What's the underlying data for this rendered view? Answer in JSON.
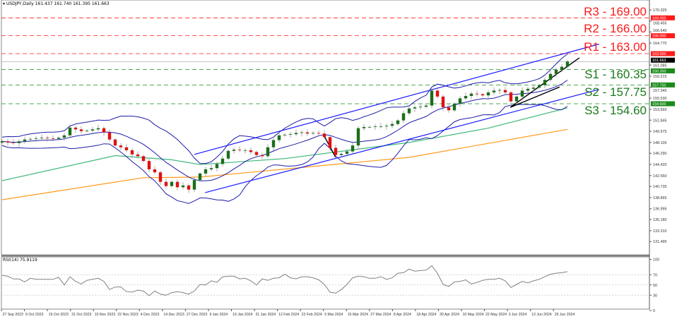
{
  "header": {
    "symbol": "USDJPY,Daily",
    "ohlc": "161.437 161.740 161.395 161.663"
  },
  "rsi_label": "RSI(14) 75.9119",
  "levels": {
    "r3": {
      "label": "R3 - 169.00",
      "value": 169.0
    },
    "r2": {
      "label": "R2 - 166.00",
      "value": 166.0
    },
    "r1": {
      "label": "R1 - 163.00",
      "value": 163.0
    },
    "s1": {
      "label": "S1 - 160.35",
      "value": 160.35
    },
    "s2": {
      "label": "S2 - 157.75",
      "value": 157.75
    },
    "s3": {
      "label": "S3 - 154.60",
      "value": 154.6
    }
  },
  "colors": {
    "resistance": "#ff1a1a",
    "support": "#1a8a1a",
    "up_candle": "#1a6e1a",
    "down_candle": "#e01010",
    "bollinger": "#1c1ca8",
    "channel": "#1a1aff",
    "ma_green": "#3cb878",
    "ma_orange": "#ff9a1a",
    "rsi": "#808080",
    "current_price": "#000000"
  },
  "chart_data": [
    {
      "type": "candlestick",
      "title": "USDJPY,Daily",
      "current_price": 161.663,
      "ylim": [
        131.0,
        171.0
      ],
      "y_tick_labels": [
        "170.325",
        "168.455",
        "166.640",
        "164.770",
        "161.085",
        "159.215",
        "157.345",
        "155.530",
        "153.660",
        "151.845",
        "149.975",
        "148.105",
        "146.290",
        "144.420",
        "142.550",
        "140.735",
        "138.865",
        "136.995",
        "135.180",
        "133.310",
        "131.495"
      ],
      "level_tags": [
        {
          "text": "169.000",
          "value": 169.0,
          "kind": "resistance"
        },
        {
          "text": "166.000",
          "value": 166.0,
          "kind": "resistance"
        },
        {
          "text": "163.000",
          "value": 163.0,
          "kind": "resistance"
        },
        {
          "text": "161.663",
          "value": 161.663,
          "kind": "current"
        },
        {
          "text": "160.350",
          "value": 160.35,
          "kind": "support"
        },
        {
          "text": "157.750",
          "value": 157.75,
          "kind": "support"
        },
        {
          "text": "154.600",
          "value": 154.6,
          "kind": "support"
        }
      ],
      "x_tick_labels": [
        "27 Sep 2023",
        "9 Oct 2023",
        "19 Oct 2023",
        "31 Oct 2023",
        "10 Nov 2023",
        "22 Nov 2023",
        "4 Dec 2023",
        "14 Dec 2023",
        "27 Dec 2023",
        "9 Jan 2024",
        "19 Jan 2024",
        "31 Jan 2024",
        "12 Feb 2024",
        "22 Feb 2024",
        "5 Mar 2024",
        "15 Mar 2024",
        "27 Mar 2024",
        "8 Apr 2024",
        "18 Apr 2024",
        "30 Apr 2024",
        "10 May 2024",
        "22 May 2024",
        "3 Jun 2024",
        "13 Jun 2024",
        "25 Jun 2024"
      ],
      "closes": [
        148.3,
        148.1,
        148.0,
        148.3,
        148.6,
        148.7,
        148.8,
        148.9,
        148.8,
        148.7,
        148.9,
        149.3,
        150.6,
        150.3,
        150.0,
        150.1,
        150.3,
        150.5,
        149.8,
        148.6,
        147.6,
        147.3,
        146.8,
        146.1,
        145.8,
        145.0,
        143.6,
        143.1,
        141.5,
        140.8,
        141.5,
        140.6,
        140.9,
        140.2,
        141.8,
        142.9,
        143.6,
        143.8,
        144.5,
        145.4,
        146.7,
        146.9,
        146.8,
        146.8,
        146.5,
        146.0,
        145.8,
        147.3,
        148.5,
        149.3,
        149.4,
        149.5,
        149.7,
        149.8,
        149.6,
        149.7,
        149.6,
        149.0,
        147.2,
        146.0,
        146.2,
        146.6,
        147.6,
        150.5,
        150.7,
        150.7,
        150.8,
        150.8,
        150.9,
        151.2,
        151.8,
        153.0,
        153.8,
        154.0,
        154.1,
        154.3,
        156.8,
        155.8,
        154.0,
        153.5,
        154.6,
        155.5,
        155.9,
        156.3,
        156.2,
        156.0,
        156.5,
        156.8,
        156.9,
        156.5,
        155.0,
        155.8,
        156.8,
        157.1,
        157.3,
        157.7,
        158.6,
        159.6,
        160.3,
        160.8,
        161.663
      ],
      "ma_green": [
        [
          0,
          141.7
        ],
        [
          20,
          145.9
        ],
        [
          30,
          145.2
        ],
        [
          35,
          144.4
        ],
        [
          50,
          145.4
        ],
        [
          72,
          148.1
        ],
        [
          86,
          150.5
        ],
        [
          100,
          153.9
        ]
      ],
      "ma_orange": [
        [
          0,
          138.5
        ],
        [
          25,
          142.2
        ],
        [
          35,
          142.3
        ],
        [
          72,
          145.6
        ],
        [
          100,
          150.3
        ]
      ],
      "channel_upper": [
        [
          34,
          146.1
        ],
        [
          105.6,
          164.6
        ]
      ],
      "channel_lower": [
        [
          35.9,
          139.7
        ],
        [
          105.6,
          157.0
        ]
      ],
      "trendlines_black": [
        [
          [
            89.9,
            154.0
          ],
          [
            102.1,
            162.3
          ]
        ],
        [
          [
            89.9,
            154.0
          ],
          [
            98.6,
            157.4
          ]
        ],
        [
          [
            56.8,
            149.5
          ],
          [
            59,
            145.6
          ]
        ]
      ]
    },
    {
      "type": "line",
      "title": "RSI(14) 75.9119",
      "ylim": [
        0,
        100
      ],
      "y_tick_labels": [
        "100",
        "70",
        "50",
        "30",
        "0"
      ],
      "guides": [
        70,
        50,
        30
      ],
      "values": [
        68.5,
        67,
        61.6,
        61.6,
        56,
        63,
        61,
        61,
        61,
        61,
        65,
        50,
        66,
        57,
        52,
        59,
        61,
        63,
        57,
        41,
        46,
        46,
        37,
        36,
        40,
        38,
        29,
        38,
        32,
        30,
        35,
        37,
        35,
        32,
        38,
        51,
        50,
        58,
        55,
        66,
        67,
        67,
        62,
        63,
        58,
        50,
        62,
        59,
        63,
        64,
        71,
        64,
        62,
        66,
        66,
        64,
        60,
        51,
        36,
        34,
        41,
        51,
        64,
        67,
        66,
        63,
        63,
        66,
        61,
        64,
        73,
        74,
        81,
        77,
        78,
        79,
        87.5,
        73,
        51,
        47,
        56,
        57,
        60,
        52,
        55,
        59,
        61,
        61,
        63,
        58,
        45,
        51,
        57,
        54,
        58,
        61,
        66,
        71,
        73,
        74,
        76
      ]
    }
  ]
}
